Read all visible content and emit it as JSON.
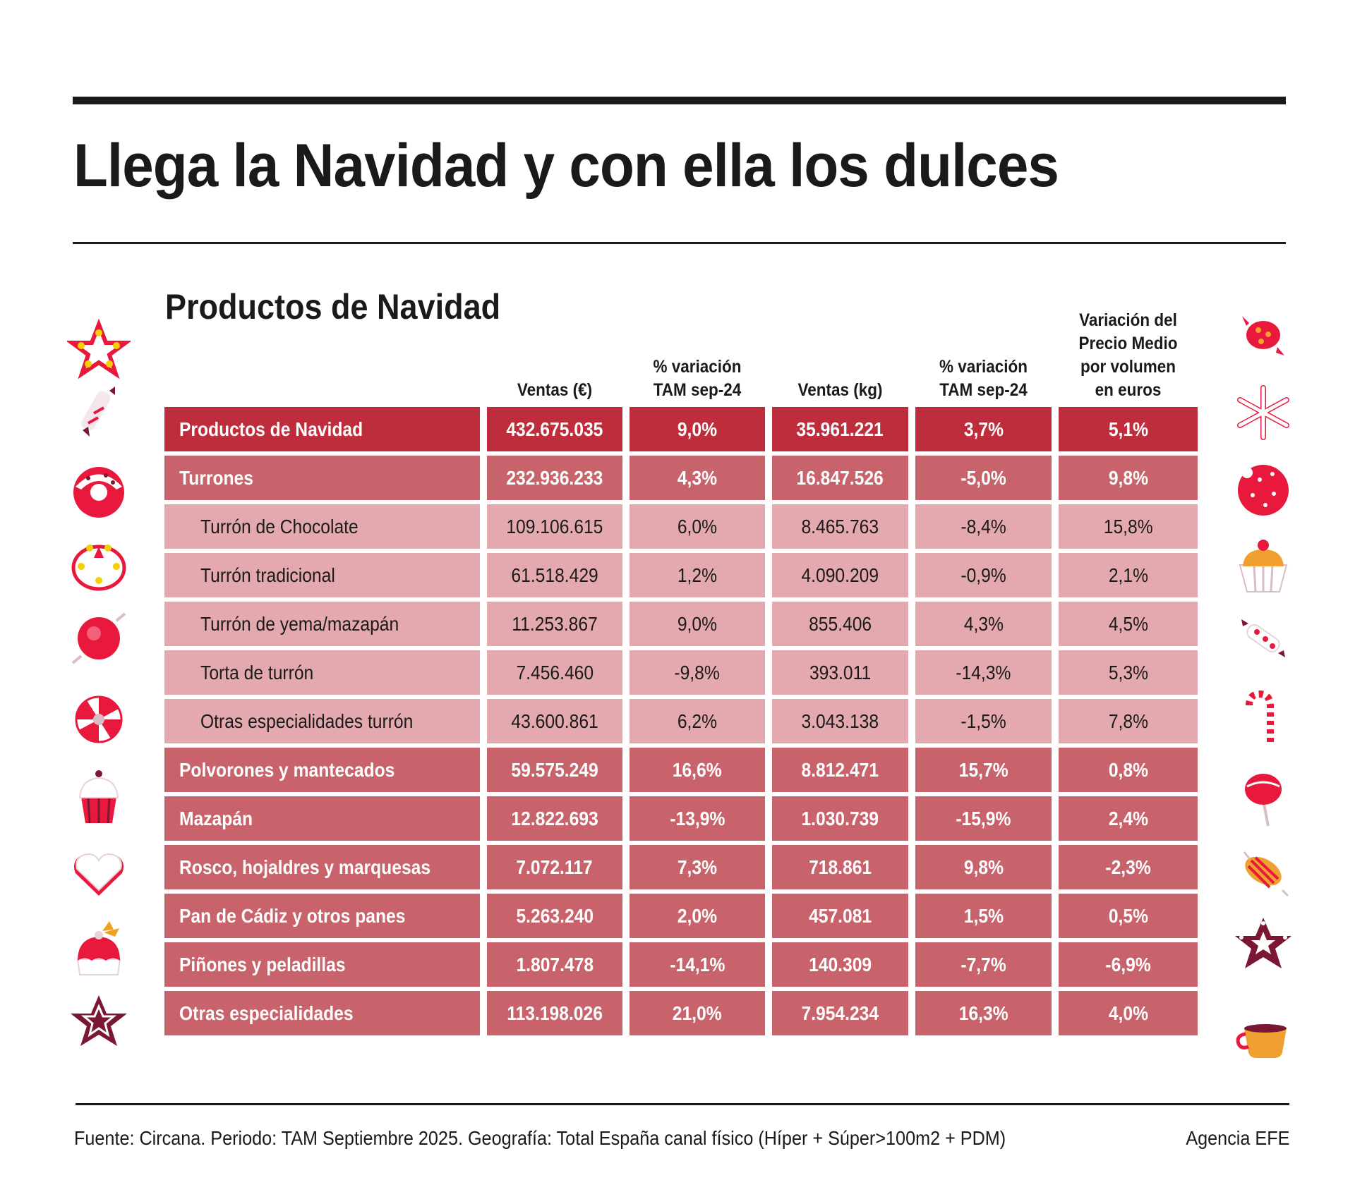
{
  "header": {
    "title": "Llega la Navidad y con ella los dulces",
    "subtitle": "Productos de Navidad"
  },
  "table": {
    "columns": [
      "",
      "Ventas (€)",
      "% variación\nTAM sep-24",
      "Ventas (kg)",
      "% variación\nTAM sep-24",
      "Variación del\nPrecio Medio\npor volumen\nen euros"
    ],
    "column_lines": [
      [],
      [
        "Ventas (€)"
      ],
      [
        "% variación",
        "TAM sep-24"
      ],
      [
        "Ventas (kg)"
      ],
      [
        "% variación",
        "TAM sep-24"
      ],
      [
        "Variación del",
        "Precio Medio",
        "por volumen",
        "en euros"
      ]
    ],
    "rows": [
      {
        "level": "total",
        "cells": [
          "Productos de Navidad",
          "432.675.035",
          "9,0%",
          "35.961.221",
          "3,7%",
          "5,1%"
        ]
      },
      {
        "level": "group",
        "cells": [
          "Turrones",
          "232.936.233",
          "4,3%",
          "16.847.526",
          "-5,0%",
          "9,8%"
        ]
      },
      {
        "level": "sub",
        "cells": [
          "Turrón de Chocolate",
          "109.106.615",
          "6,0%",
          "8.465.763",
          "-8,4%",
          "15,8%"
        ]
      },
      {
        "level": "sub",
        "cells": [
          "Turrón tradicional",
          "61.518.429",
          "1,2%",
          "4.090.209",
          "-0,9%",
          "2,1%"
        ]
      },
      {
        "level": "sub",
        "cells": [
          "Turrón de yema/mazapán",
          "11.253.867",
          "9,0%",
          "855.406",
          "4,3%",
          "4,5%"
        ]
      },
      {
        "level": "sub",
        "cells": [
          "Torta de turrón",
          "7.456.460",
          "-9,8%",
          "393.011",
          "-14,3%",
          "5,3%"
        ]
      },
      {
        "level": "sub",
        "cells": [
          "Otras especialidades turrón",
          "43.600.861",
          "6,2%",
          "3.043.138",
          "-1,5%",
          "7,8%"
        ]
      },
      {
        "level": "group",
        "cells": [
          "Polvorones y mantecados",
          "59.575.249",
          "16,6%",
          "8.812.471",
          "15,7%",
          "0,8%"
        ]
      },
      {
        "level": "group",
        "cells": [
          "Mazapán",
          "12.822.693",
          "-13,9%",
          "1.030.739",
          "-15,9%",
          "2,4%"
        ]
      },
      {
        "level": "group",
        "cells": [
          "Rosco, hojaldres y marquesas",
          "7.072.117",
          "7,3%",
          "718.861",
          "9,8%",
          "-2,3%"
        ]
      },
      {
        "level": "group",
        "cells": [
          "Pan de Cádiz y otros panes",
          "5.263.240",
          "2,0%",
          "457.081",
          "1,5%",
          "0,5%"
        ]
      },
      {
        "level": "group",
        "cells": [
          "Piñones y peladillas",
          "1.807.478",
          "-14,1%",
          "140.309",
          "-7,7%",
          "-6,9%"
        ]
      },
      {
        "level": "group",
        "cells": [
          "Otras especialidades",
          "113.198.026",
          "21,0%",
          "7.954.234",
          "16,3%",
          "4,0%"
        ]
      }
    ]
  },
  "colors": {
    "total_row": "#BE2D3B",
    "group_row": "#C8636C",
    "sub_row": "#E4A9AF",
    "rule": "#1a1a1a"
  },
  "footer": {
    "source": "Fuente: Circana. Periodo: TAM Septiembre 2025. Geografía: Total España canal físico (Híper + Súper>100m2 + PDM)",
    "credit": "Agencia EFE"
  },
  "decorations": {
    "left": [
      "star-cookie-icon",
      "wrapped-candy-icon",
      "donut-icon",
      "wreath-cookie-icon",
      "round-candy-icon",
      "peppermint-icon",
      "cupcake-icon",
      "heart-cookie-icon",
      "pudding-icon",
      "gingerbread-star-icon"
    ],
    "right": [
      "wrapped-bonbon-icon",
      "snowflake-cookie-icon",
      "sprinkle-cookie-icon",
      "muffin-icon",
      "striped-candy-icon",
      "candy-cane-icon",
      "lollipop-icon",
      "striped-bonbon-icon",
      "star-wreath-icon",
      "cocoa-cup-icon"
    ]
  }
}
